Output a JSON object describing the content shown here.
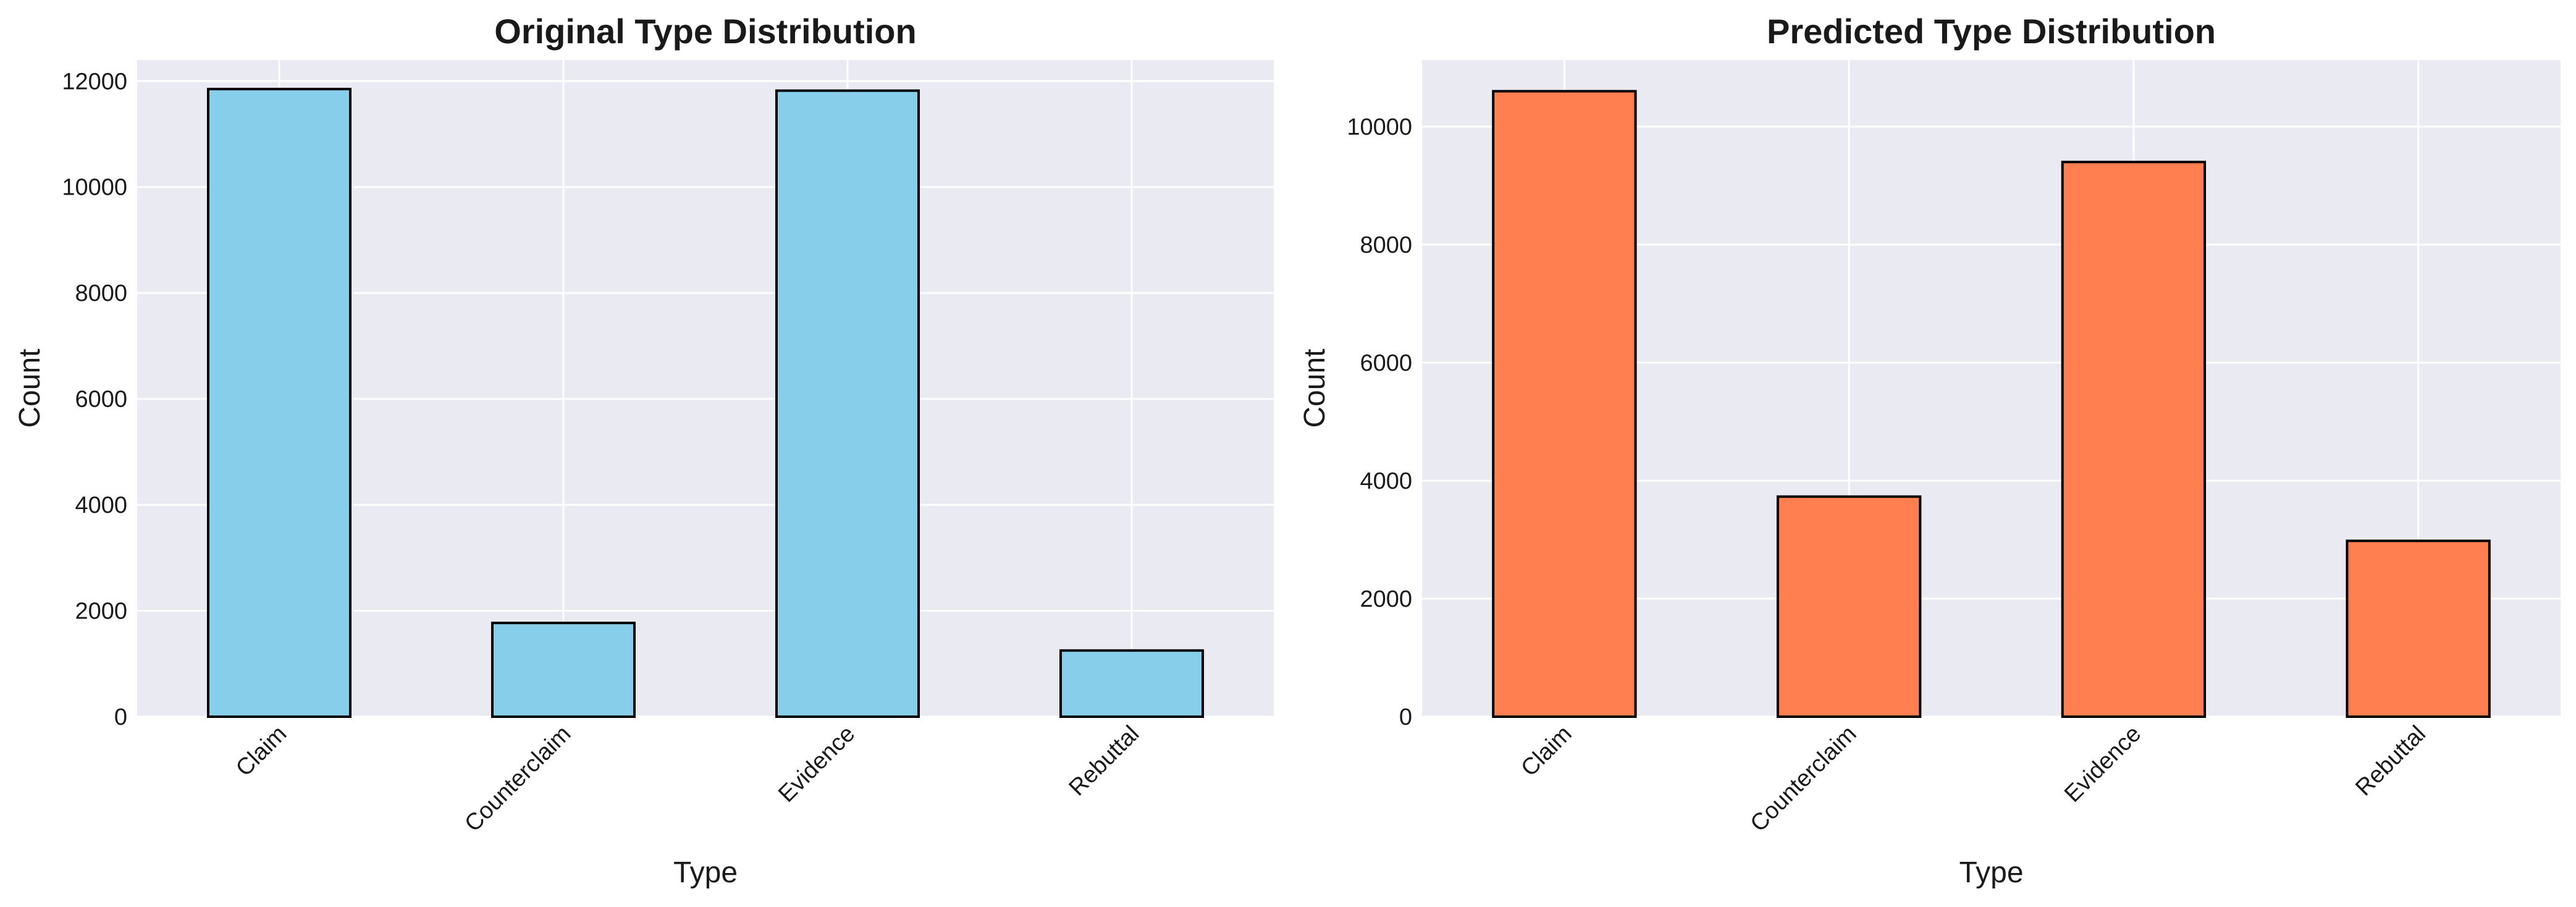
{
  "chart_data": [
    {
      "type": "bar",
      "title": "Original Type Distribution",
      "xlabel": "Type",
      "ylabel": "Count",
      "categories": [
        "Claim",
        "Counterclaim",
        "Evidence",
        "Rebuttal"
      ],
      "values": [
        11850,
        1770,
        11820,
        1250
      ],
      "ylim": [
        0,
        12400
      ],
      "yticks": [
        0,
        2000,
        4000,
        6000,
        8000,
        10000,
        12000
      ],
      "ytick_labels": [
        "0",
        "2000",
        "4000",
        "6000",
        "8000",
        "10000",
        "12000"
      ],
      "bar_color": "#87CEEB",
      "edge_color": "#000000",
      "grid": true
    },
    {
      "type": "bar",
      "title": "Predicted Type Distribution",
      "xlabel": "Type",
      "ylabel": "Count",
      "categories": [
        "Claim",
        "Counterclaim",
        "Evidence",
        "Rebuttal"
      ],
      "values": [
        10600,
        3730,
        9400,
        2980
      ],
      "ylim": [
        0,
        11130
      ],
      "yticks": [
        0,
        2000,
        4000,
        6000,
        8000,
        10000
      ],
      "ytick_labels": [
        "0",
        "2000",
        "4000",
        "6000",
        "8000",
        "10000"
      ],
      "bar_color": "#FF7F50",
      "edge_color": "#000000",
      "grid": true
    }
  ],
  "style": {
    "plot_background": "#EAEAF2",
    "grid_color": "#FFFFFF"
  }
}
